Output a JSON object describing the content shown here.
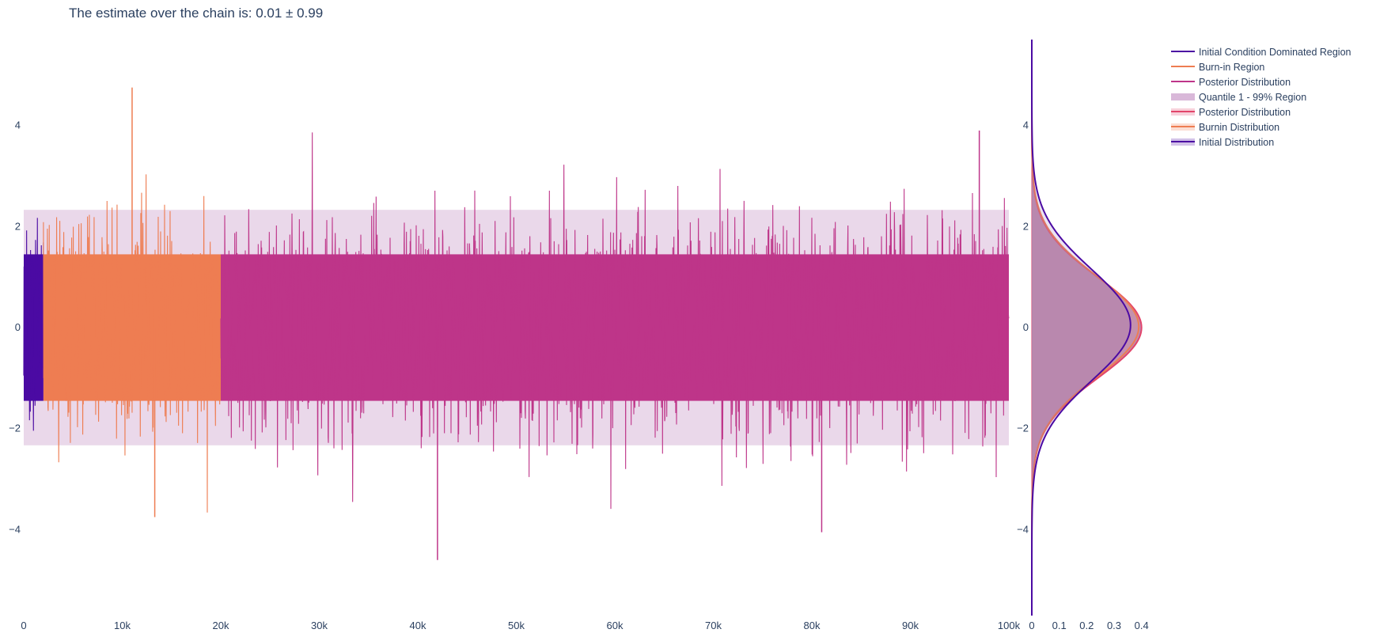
{
  "title": "The estimate over the chain is: 0.01 ± 0.99",
  "legend": [
    {
      "label": "Initial Condition Dominated Region",
      "color": "#4b0aa3",
      "kind": "line"
    },
    {
      "label": "Burn-in Region",
      "color": "#ee7d52",
      "kind": "line"
    },
    {
      "label": "Posterior Distribution",
      "color": "#be3589",
      "kind": "line"
    },
    {
      "label": "Quantile 1 - 99% Region",
      "color": "#d9b8d9",
      "kind": "band"
    },
    {
      "label": "Posterior Distribution",
      "color": "#e2446a",
      "kind": "filled-line"
    },
    {
      "label": "Burnin Distribution",
      "color": "#ee7d52",
      "kind": "filled-line"
    },
    {
      "label": "Initial Distribution",
      "color": "#4b0aa3",
      "kind": "filled-line"
    }
  ],
  "chart_data": [
    {
      "type": "line",
      "description_role": "trace",
      "xlim": [
        0,
        100000
      ],
      "ylim": [
        -5.7,
        5.7
      ],
      "x_tick_labels": [
        "0",
        "10k",
        "20k",
        "30k",
        "40k",
        "50k",
        "60k",
        "70k",
        "80k",
        "90k",
        "100k"
      ],
      "x_tick_values": [
        0,
        10000,
        20000,
        30000,
        40000,
        50000,
        60000,
        70000,
        80000,
        90000,
        100000
      ],
      "y_tick_labels": [
        "−4",
        "−2",
        "0",
        "2",
        "4"
      ],
      "y_tick_values": [
        -4,
        -2,
        0,
        2,
        4
      ],
      "regions": [
        {
          "name": "Initial Condition Dominated Region",
          "x_start": 0,
          "x_end": 2000,
          "color": "#4b0aa3",
          "typical_min": -2.2,
          "typical_max": 2.6
        },
        {
          "name": "Burn-in Region",
          "x_start": 2000,
          "x_end": 20000,
          "color": "#ee7d52",
          "typical_min": -3.7,
          "typical_max": 4.7
        },
        {
          "name": "Posterior Distribution",
          "x_start": 20000,
          "x_end": 100000,
          "color": "#be3589",
          "typical_min": -4.6,
          "typical_max": 3.9
        }
      ],
      "quantile_band": {
        "name": "Quantile 1 - 99% Region",
        "low": -2.33,
        "high": 2.33,
        "color": "#d9b8d9"
      },
      "notable_points": [
        {
          "x": 11000,
          "y": 4.75
        },
        {
          "x": 13300,
          "y": -3.75
        },
        {
          "x": 42000,
          "y": -4.6
        },
        {
          "x": 97000,
          "y": 3.9
        },
        {
          "x": 81000,
          "y": -4.05
        }
      ]
    },
    {
      "type": "area",
      "description_role": "marginal-density",
      "xlim": [
        0,
        0.45
      ],
      "ylim": [
        -5.7,
        5.7
      ],
      "x_tick_labels": [
        "0",
        "0.1",
        "0.2",
        "0.3",
        "0.4"
      ],
      "x_tick_values": [
        0,
        0.1,
        0.2,
        0.3,
        0.4
      ],
      "y_tick_labels": [
        "−4",
        "−2",
        "0",
        "2",
        "4"
      ],
      "y_tick_values": [
        -4,
        -2,
        0,
        2,
        4
      ],
      "series": [
        {
          "name": "Posterior Distribution",
          "color": "#e2446a",
          "mean": 0.0,
          "sd": 0.99,
          "peak": 0.4
        },
        {
          "name": "Burnin Distribution",
          "color": "#ee7d52",
          "mean": 0.02,
          "sd": 1.0,
          "peak": 0.39
        },
        {
          "name": "Initial Distribution",
          "color": "#4b0aa3",
          "mean": 0.05,
          "sd": 1.1,
          "peak": 0.36
        }
      ],
      "reference_line": {
        "x": 0,
        "color": "#e2446a"
      }
    }
  ]
}
